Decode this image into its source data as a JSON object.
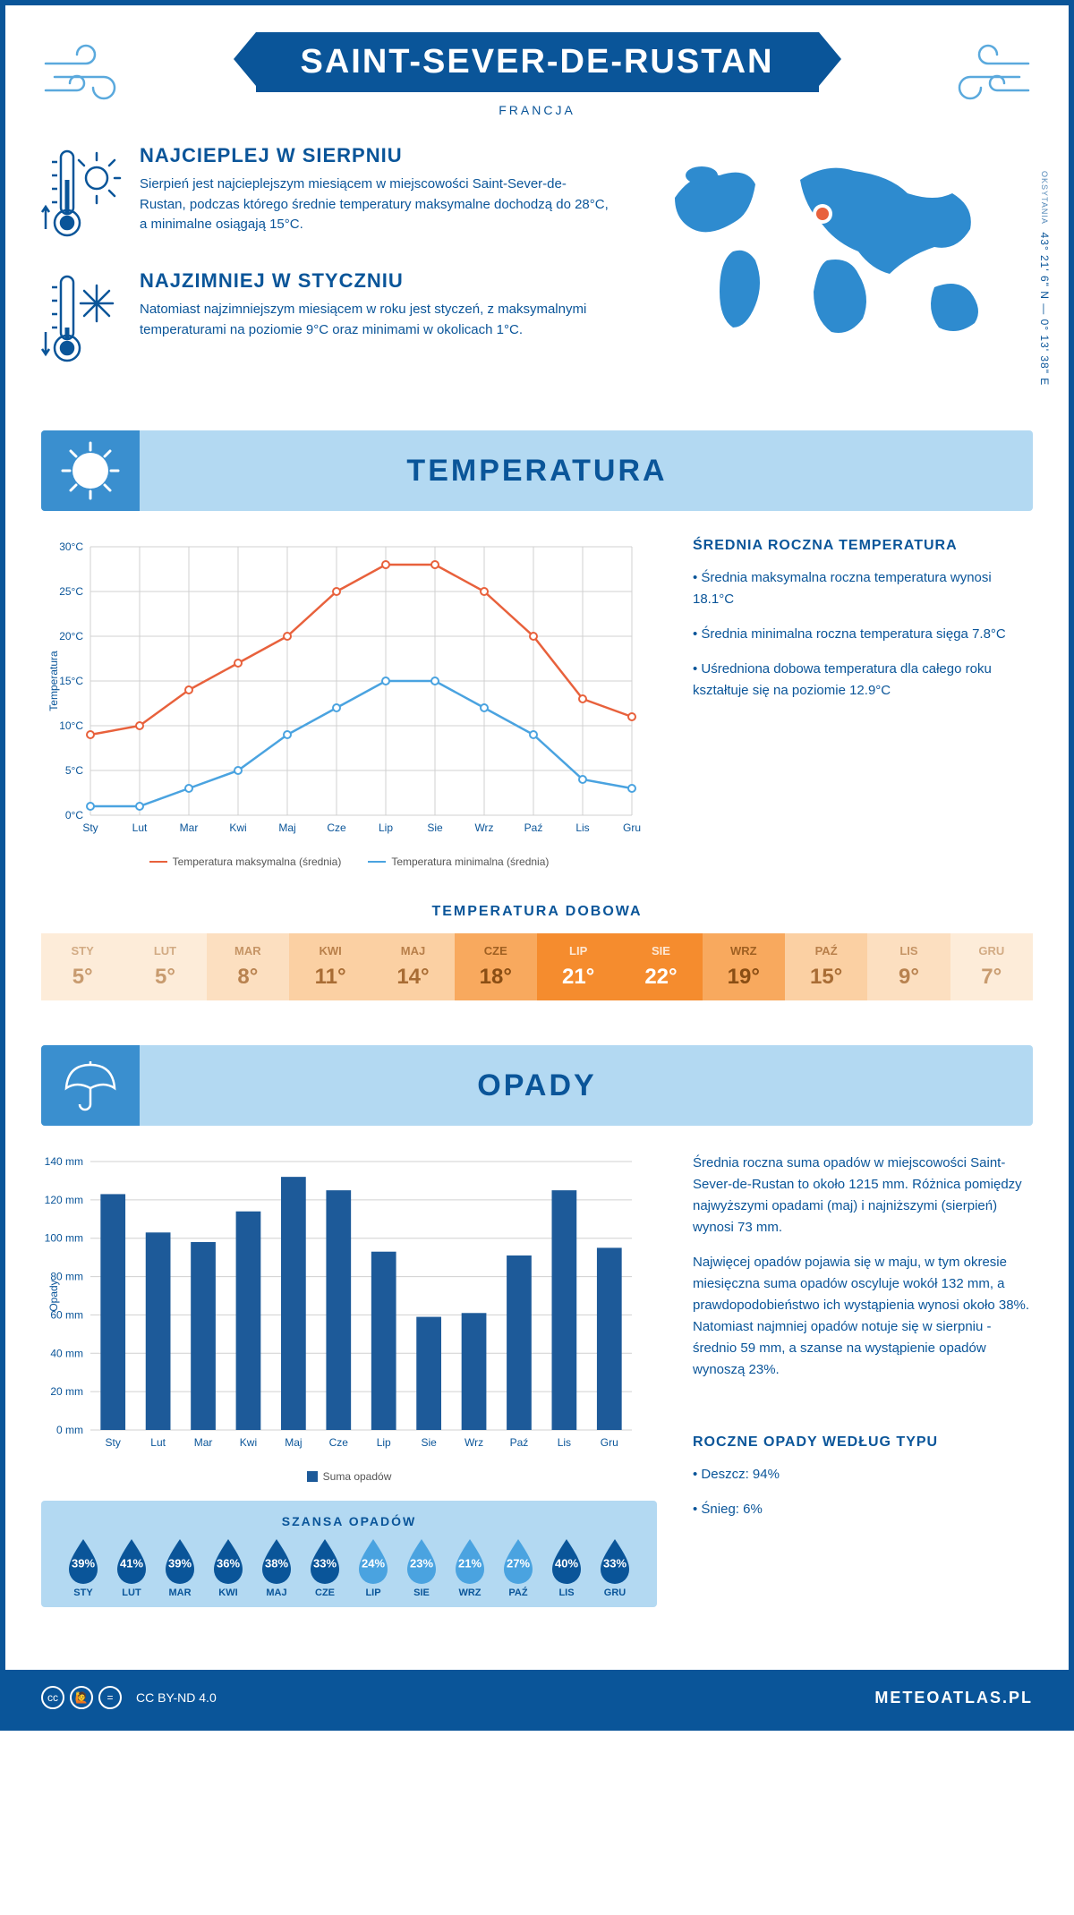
{
  "header": {
    "title": "SAINT-SEVER-DE-RUSTAN",
    "subtitle": "FRANCJA"
  },
  "coords": {
    "region": "OKSYTANIA",
    "value": "43° 21' 6\" N — 0° 13' 38\" E"
  },
  "intro": {
    "hot": {
      "title": "NAJCIEPLEJ W SIERPNIU",
      "body": "Sierpień jest najcieplejszym miesiącem w miejscowości Saint-Sever-de-Rustan, podczas którego średnie temperatury maksymalne dochodzą do 28°C, a minimalne osiągają 15°C."
    },
    "cold": {
      "title": "NAJZIMNIEJ W STYCZNIU",
      "body": "Natomiast najzimniejszym miesiącem w roku jest styczeń, z maksymalnymi temperaturami na poziomie 9°C oraz minimami w okolicach 1°C."
    }
  },
  "sections": {
    "temp": "TEMPERATURA",
    "rain": "OPADY"
  },
  "months": [
    "Sty",
    "Lut",
    "Mar",
    "Kwi",
    "Maj",
    "Cze",
    "Lip",
    "Sie",
    "Wrz",
    "Paź",
    "Lis",
    "Gru"
  ],
  "months_upper": [
    "STY",
    "LUT",
    "MAR",
    "KWI",
    "MAJ",
    "CZE",
    "LIP",
    "SIE",
    "WRZ",
    "PAŹ",
    "LIS",
    "GRU"
  ],
  "tempChart": {
    "ylabel": "Temperatura",
    "ylim": [
      0,
      30
    ],
    "ytick": 5,
    "series": {
      "max": {
        "label": "Temperatura maksymalna (średnia)",
        "color": "#e8613c",
        "values": [
          9,
          10,
          14,
          17,
          20,
          25,
          28,
          28,
          25,
          20,
          13,
          11
        ]
      },
      "min": {
        "label": "Temperatura minimalna (średnia)",
        "color": "#4aa3e0",
        "values": [
          1,
          1,
          3,
          5,
          9,
          12,
          15,
          15,
          12,
          9,
          4,
          3
        ]
      }
    }
  },
  "tempSide": {
    "title": "ŚREDNIA ROCZNA TEMPERATURA",
    "lines": [
      "• Średnia maksymalna roczna temperatura wynosi 18.1°C",
      "• Średnia minimalna roczna temperatura sięga 7.8°C",
      "• Uśredniona dobowa temperatura dla całego roku kształtuje się na poziomie 12.9°C"
    ]
  },
  "dobowa": {
    "title": "TEMPERATURA DOBOWA",
    "values": [
      5,
      5,
      8,
      11,
      14,
      18,
      21,
      22,
      19,
      15,
      9,
      7
    ],
    "colors": [
      "#fdecd9",
      "#fdecd9",
      "#fcdfc0",
      "#fbd0a3",
      "#fbd0a3",
      "#f8a95e",
      "#f58c2e",
      "#f58c2e",
      "#f8a95e",
      "#fbd0a3",
      "#fcdfc0",
      "#fdecd9"
    ],
    "textcolors": [
      "#c89b6f",
      "#c89b6f",
      "#b8824f",
      "#a86c34",
      "#a86c34",
      "#8a4e14",
      "#ffffff",
      "#ffffff",
      "#8a4e14",
      "#a86c34",
      "#b8824f",
      "#c89b6f"
    ]
  },
  "rainChart": {
    "ylabel": "Opady",
    "ylim": [
      0,
      140
    ],
    "ytick": 20,
    "color": "#1d5a99",
    "legend": "Suma opadów",
    "values": [
      123,
      103,
      98,
      114,
      132,
      125,
      93,
      59,
      61,
      91,
      125,
      95
    ]
  },
  "rainSide": {
    "p1": "Średnia roczna suma opadów w miejscowości Saint-Sever-de-Rustan to około 1215 mm. Różnica pomiędzy najwyższymi opadami (maj) i najniższymi (sierpień) wynosi 73 mm.",
    "p2": "Najwięcej opadów pojawia się w maju, w tym okresie miesięczna suma opadów oscyluje wokół 132 mm, a prawdopodobieństwo ich wystąpienia wynosi około 38%. Natomiast najmniej opadów notuje się w sierpniu - średnio 59 mm, a szanse na wystąpienie opadów wynoszą 23%.",
    "typeTitle": "ROCZNE OPADY WEDŁUG TYPU",
    "types": [
      "• Deszcz: 94%",
      "• Śnieg: 6%"
    ]
  },
  "chance": {
    "title": "SZANSA OPADÓW",
    "values": [
      39,
      41,
      39,
      36,
      38,
      33,
      24,
      23,
      21,
      27,
      40,
      33
    ],
    "darkColor": "#0a5599",
    "lightColor": "#4aa3e0",
    "threshold": 30
  },
  "footer": {
    "license": "CC BY-ND 4.0",
    "brand": "METEOATLAS.PL"
  },
  "palette": {
    "primary": "#0a5599",
    "lightblue": "#b3d9f2",
    "midblue": "#3a8fcf"
  }
}
